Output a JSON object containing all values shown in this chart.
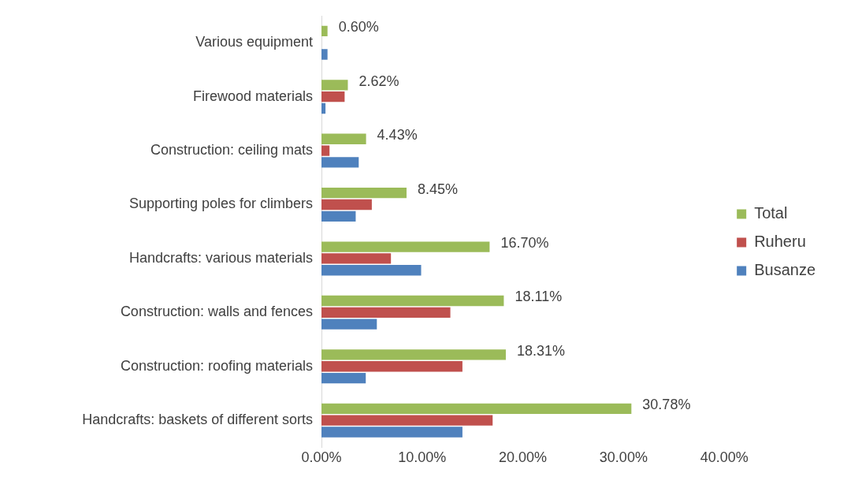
{
  "chart_data": {
    "type": "bar",
    "orientation": "horizontal",
    "categories": [
      "Various equipment",
      "Firewood materials",
      "Construction: ceiling mats",
      "Supporting poles for climbers",
      "Handcrafts: various materials",
      "Construction: walls and fences",
      "Construction: roofing materials",
      "Handcrafts: baskets of different sorts"
    ],
    "series": [
      {
        "name": "Total",
        "color": "#9bbb59",
        "values": [
          0.6,
          2.62,
          4.43,
          8.45,
          16.7,
          18.11,
          18.31,
          30.78
        ],
        "value_labels": [
          "0.60%",
          "2.62%",
          "4.43%",
          "8.45%",
          "16.70%",
          "18.11%",
          "18.31%",
          "30.78%"
        ]
      },
      {
        "name": "Ruheru",
        "color": "#c0504d",
        "values": [
          0,
          2.3,
          0.8,
          5.0,
          6.9,
          12.8,
          14.0,
          17.0
        ]
      },
      {
        "name": "Busanze",
        "color": "#4f81bd",
        "values": [
          0.6,
          0.4,
          3.7,
          3.4,
          9.9,
          5.5,
          4.4,
          14.0
        ]
      }
    ],
    "xlim": [
      0,
      40
    ],
    "xticks": [
      {
        "value": 0,
        "label": "0.00%"
      },
      {
        "value": 10,
        "label": "10.00%"
      },
      {
        "value": 20,
        "label": "20.00%"
      },
      {
        "value": 30,
        "label": "30.00%"
      },
      {
        "value": 40,
        "label": "40.00%"
      }
    ],
    "grid": false,
    "legend": "right"
  }
}
